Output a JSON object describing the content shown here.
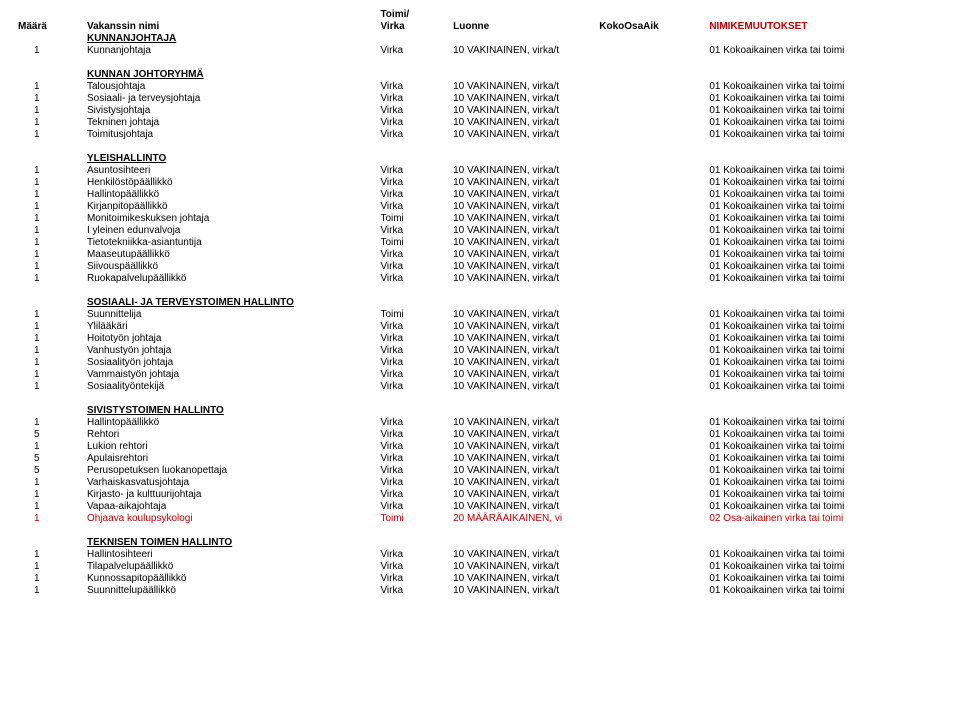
{
  "headers": {
    "maara": "Määrä",
    "nimi": "Vakanssin nimi",
    "toimi": "Toimi/",
    "virka": "Virka",
    "luonne": "Luonne",
    "kokoosa": "KokoOsaAik",
    "muutokset": "NIMIKEMUUTOKSET"
  },
  "defaults": {
    "virka": "Virka",
    "toimi": "Toimi",
    "luonne": "10 VAKINAINEN, virka/t",
    "osa": "01 Kokoaikainen virka tai toimi",
    "luonne_red": "20 MÄÄRÄAIKAINEN, vi",
    "osa_red": "02 Osa-aikainen virka tai toimi"
  },
  "sections": [
    {
      "title": "KUNNANJOHTAJA",
      "rows": [
        {
          "n": "1",
          "name": "Kunnanjohtaja",
          "t": "Virka"
        }
      ]
    },
    {
      "title": "KUNNAN JOHTORYHMÄ",
      "rows": [
        {
          "n": "1",
          "name": "Talousjohtaja",
          "t": "Virka"
        },
        {
          "n": "1",
          "name": "Sosiaali- ja terveysjohtaja",
          "t": "Virka"
        },
        {
          "n": "1",
          "name": "Sivistysjohtaja",
          "t": "Virka"
        },
        {
          "n": "1",
          "name": "Tekninen johtaja",
          "t": "Virka"
        },
        {
          "n": "1",
          "name": "Toimitusjohtaja",
          "t": "Virka"
        }
      ]
    },
    {
      "title": "YLEISHALLINTO",
      "rows": [
        {
          "n": "1",
          "name": "Asuntosihteeri",
          "t": "Virka"
        },
        {
          "n": "1",
          "name": "Henkilöstöpäällikkö",
          "t": "Virka"
        },
        {
          "n": "1",
          "name": "Hallintopäällikkö",
          "t": "Virka"
        },
        {
          "n": "1",
          "name": "Kirjanpitopäällikkö",
          "t": "Virka"
        },
        {
          "n": "1",
          "name": "Monitoimikeskuksen johtaja",
          "t": "Toimi"
        },
        {
          "n": "1",
          "name": "I yleinen edunvalvoja",
          "t": "Virka"
        },
        {
          "n": "1",
          "name": "Tietotekniikka-asiantuntija",
          "t": "Toimi"
        },
        {
          "n": "1",
          "name": "Maaseutupäällikkö",
          "t": "Virka"
        },
        {
          "n": "1",
          "name": "Siivouspäällikkö",
          "t": "Virka"
        },
        {
          "n": "1",
          "name": "Ruokapalvelupäällikkö",
          "t": "Virka"
        }
      ]
    },
    {
      "title": "SOSIAALI- JA TERVEYSTOIMEN HALLINTO",
      "rows": [
        {
          "n": "1",
          "name": "Suunnittelija",
          "t": "Toimi"
        },
        {
          "n": "1",
          "name": "Ylilääkäri",
          "t": "Virka"
        },
        {
          "n": "1",
          "name": "Hoitotyön johtaja",
          "t": "Virka"
        },
        {
          "n": "1",
          "name": "Vanhustyön johtaja",
          "t": "Virka"
        },
        {
          "n": "1",
          "name": "Sosiaalityön johtaja",
          "t": "Virka"
        },
        {
          "n": "1",
          "name": "Vammaistyön johtaja",
          "t": "Virka"
        },
        {
          "n": "1",
          "name": "Sosiaalityöntekijä",
          "t": "Virka"
        }
      ]
    },
    {
      "title": "SIVISTYSTOIMEN HALLINTO",
      "rows": [
        {
          "n": "1",
          "name": "Hallintopäällikkö",
          "t": "Virka"
        },
        {
          "n": "5",
          "name": "Rehtori",
          "t": "Virka"
        },
        {
          "n": "1",
          "name": "Lukion rehtori",
          "t": "Virka"
        },
        {
          "n": "5",
          "name": "Apulaisrehtori",
          "t": "Virka"
        },
        {
          "n": "5",
          "name": "Perusopetuksen luokanopettaja",
          "t": "Virka"
        },
        {
          "n": "1",
          "name": "Varhaiskasvatusjohtaja",
          "t": "Virka"
        },
        {
          "n": "1",
          "name": "Kirjasto- ja kulttuurijohtaja",
          "t": "Virka"
        },
        {
          "n": "1",
          "name": "Vapaa-aikajohtaja",
          "t": "Virka"
        },
        {
          "n": "1",
          "name": "Ohjaava koulupsykologi",
          "t": "Toimi",
          "red": true
        }
      ]
    },
    {
      "title": "TEKNISEN TOIMEN HALLINTO",
      "rows": [
        {
          "n": "1",
          "name": "Hallintosihteeri",
          "t": "Virka"
        },
        {
          "n": "1",
          "name": "Tilapalvelupäällikkö",
          "t": "Virka"
        },
        {
          "n": "1",
          "name": "Kunnossapitopäällikkö",
          "t": "Virka"
        },
        {
          "n": "1",
          "name": "Suunnittelupäällikkö",
          "t": "Virka"
        }
      ]
    }
  ]
}
